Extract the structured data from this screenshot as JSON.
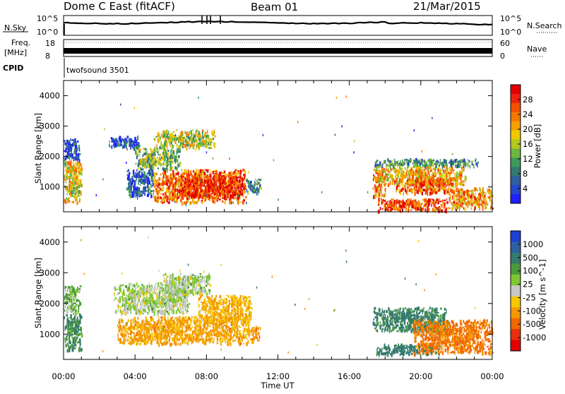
{
  "header": {
    "radar_name": "Dome C East (fitACF)",
    "beam": "Beam 01",
    "date": "21/Mar/2015"
  },
  "aux_panels": {
    "nsky_label": "N.Sky",
    "nsky_ticks": [
      "10^5",
      "10^0"
    ],
    "nsearch_label": "N.Search",
    "nsearch_ticks": [
      "10^5",
      "10^0"
    ],
    "freq_label": "Freq.",
    "freq_unit": "[MHz]",
    "freq_ticks": [
      "18",
      "8"
    ],
    "nave_label": "Nave",
    "nave_ticks": [
      "60",
      "0"
    ],
    "cpid_label": "CPID",
    "cpid_value": "twofsound 3501"
  },
  "chart_data": [
    {
      "type": "heatmap",
      "name": "power",
      "xlabel": "",
      "ylabel": "Slant Range [km]",
      "yticks": [
        "1000",
        "2000",
        "3000",
        "4000"
      ],
      "xlim": [
        0,
        24
      ],
      "ylim": [
        180,
        4500
      ],
      "colorbar": {
        "label": "Power [dB]",
        "ticks": [
          "4",
          "8",
          "12",
          "16",
          "20",
          "24",
          "28"
        ],
        "colors": [
          "#1f1fff",
          "#2446c8",
          "#2e5fa0",
          "#347a6e",
          "#3c9a5a",
          "#6cb63e",
          "#b4c820",
          "#f0c800",
          "#f4a000",
          "#f47800",
          "#f45000",
          "#ee2010",
          "#e00000"
        ]
      },
      "regions": [
        {
          "t": [
            0.0,
            1.0
          ],
          "r": [
            500,
            1900
          ],
          "v": 18
        },
        {
          "t": [
            0.0,
            0.9
          ],
          "r": [
            1900,
            2600
          ],
          "v": 6
        },
        {
          "t": [
            2.5,
            4.2
          ],
          "r": [
            2300,
            2700
          ],
          "v": 5
        },
        {
          "t": [
            4.0,
            6.5
          ],
          "r": [
            1600,
            2300
          ],
          "v": 14
        },
        {
          "t": [
            5.0,
            8.5
          ],
          "r": [
            2300,
            2900
          ],
          "v": 16
        },
        {
          "t": [
            3.5,
            5.0
          ],
          "r": [
            700,
            1600
          ],
          "v": 6
        },
        {
          "t": [
            5.0,
            10.2
          ],
          "r": [
            500,
            1600
          ],
          "v": 24
        },
        {
          "t": [
            6.5,
            10.0
          ],
          "r": [
            700,
            1400
          ],
          "v": 28
        },
        {
          "t": [
            10.2,
            11.0
          ],
          "r": [
            800,
            1300
          ],
          "v": 10
        },
        {
          "t": [
            17.3,
            18.0
          ],
          "r": [
            700,
            1600
          ],
          "v": 22
        },
        {
          "t": [
            17.4,
            22.5
          ],
          "r": [
            1100,
            1700
          ],
          "v": 20
        },
        {
          "t": [
            17.4,
            23.2
          ],
          "r": [
            1700,
            1950
          ],
          "v": 10
        },
        {
          "t": [
            18.5,
            22.0
          ],
          "r": [
            800,
            1300
          ],
          "v": 24
        },
        {
          "t": [
            17.5,
            21.5
          ],
          "r": [
            250,
            650
          ],
          "v": 26
        },
        {
          "t": [
            21.5,
            24.0
          ],
          "r": [
            300,
            1000
          ],
          "v": 22
        }
      ]
    },
    {
      "type": "heatmap",
      "name": "velocity",
      "xlabel": "Time UT",
      "ylabel": "Slant Range [km]",
      "xticks": [
        "00:00",
        "04:00",
        "08:00",
        "12:00",
        "16:00",
        "20:00",
        "00:00"
      ],
      "yticks": [
        "1000",
        "2000",
        "3000",
        "4000"
      ],
      "xlim": [
        0,
        24
      ],
      "ylim": [
        180,
        4500
      ],
      "colorbar": {
        "label": "Velocity [m s^-1]",
        "ticks": [
          "1000",
          "500",
          "100",
          "25",
          "-25",
          "-100",
          "-500",
          "-1000"
        ],
        "colors": [
          "#1f3fd0",
          "#2e5fa0",
          "#347a6e",
          "#4c9a3e",
          "#7ec830",
          "#c8c8c8",
          "#f4c800",
          "#f49800",
          "#f06800",
          "#e83010",
          "#e00000"
        ]
      },
      "regions": [
        {
          "t": [
            0.0,
            1.0
          ],
          "r": [
            500,
            1700
          ],
          "v": 100
        },
        {
          "t": [
            0.0,
            0.9
          ],
          "r": [
            1700,
            2600
          ],
          "v": 25
        },
        {
          "t": [
            2.8,
            7.0
          ],
          "r": [
            1700,
            2700
          ],
          "v": 0
        },
        {
          "t": [
            5.5,
            8.2
          ],
          "r": [
            2300,
            3000
          ],
          "v": 0
        },
        {
          "t": [
            3.0,
            10.5
          ],
          "r": [
            700,
            1600
          ],
          "v": -150
        },
        {
          "t": [
            7.5,
            10.5
          ],
          "r": [
            1400,
            2300
          ],
          "v": -100
        },
        {
          "t": [
            10.5,
            11.0
          ],
          "r": [
            800,
            1300
          ],
          "v": -250
        },
        {
          "t": [
            17.3,
            21.5
          ],
          "r": [
            1100,
            1900
          ],
          "v": 150
        },
        {
          "t": [
            17.5,
            21.0
          ],
          "r": [
            350,
            700
          ],
          "v": 200
        },
        {
          "t": [
            19.5,
            24.0
          ],
          "r": [
            400,
            1500
          ],
          "v": -300
        }
      ]
    }
  ]
}
